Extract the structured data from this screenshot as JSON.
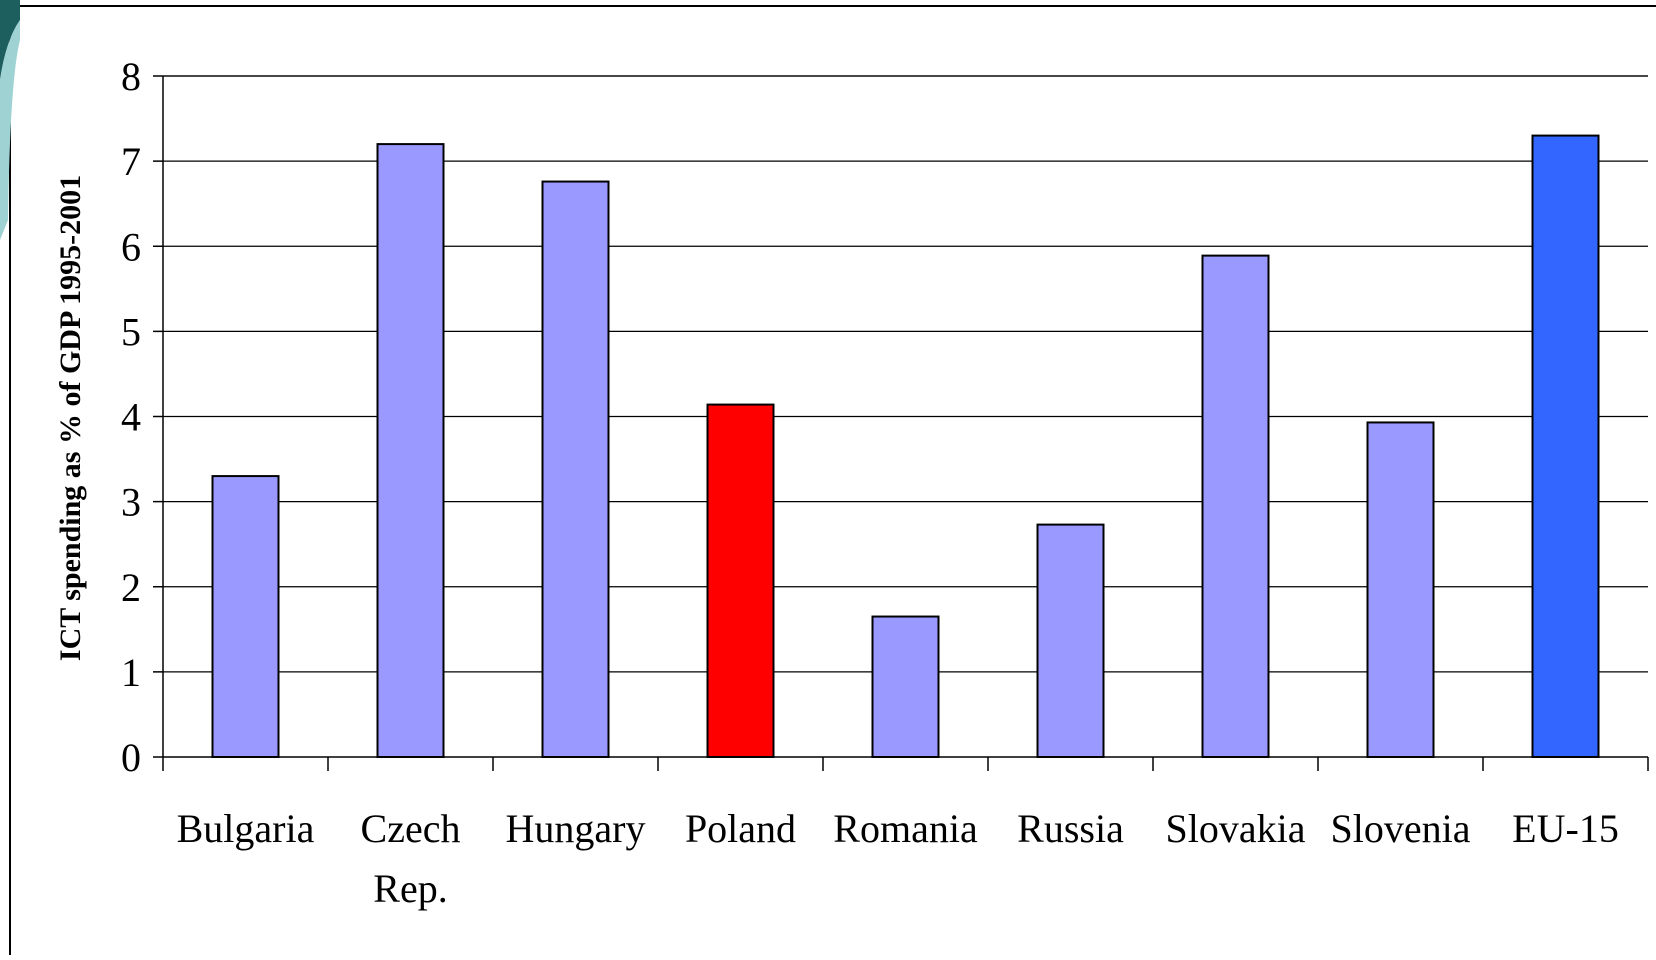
{
  "chart_data": {
    "type": "bar",
    "ylabel": "ICT spending as % of GDP 1995-2001",
    "xlabel": "",
    "ylim": [
      0,
      8
    ],
    "yticks": [
      "0",
      "1",
      "2",
      "3",
      "4",
      "5",
      "6",
      "7",
      "8"
    ],
    "grid": true,
    "categories": [
      {
        "line1": "Bulgaria",
        "line2": ""
      },
      {
        "line1": "Czech",
        "line2": "Rep."
      },
      {
        "line1": "Hungary",
        "line2": ""
      },
      {
        "line1": "Poland",
        "line2": ""
      },
      {
        "line1": "Romania",
        "line2": ""
      },
      {
        "line1": "Russia",
        "line2": ""
      },
      {
        "line1": "Slovakia",
        "line2": ""
      },
      {
        "line1": "Slovenia",
        "line2": ""
      },
      {
        "line1": "EU-15",
        "line2": ""
      }
    ],
    "values": [
      3.3,
      7.2,
      6.76,
      4.14,
      1.65,
      2.73,
      5.89,
      3.93,
      7.3
    ],
    "bar_colors": [
      "#9999ff",
      "#9999ff",
      "#9999ff",
      "#ff0000",
      "#9999ff",
      "#9999ff",
      "#9999ff",
      "#9999ff",
      "#3366ff"
    ]
  }
}
